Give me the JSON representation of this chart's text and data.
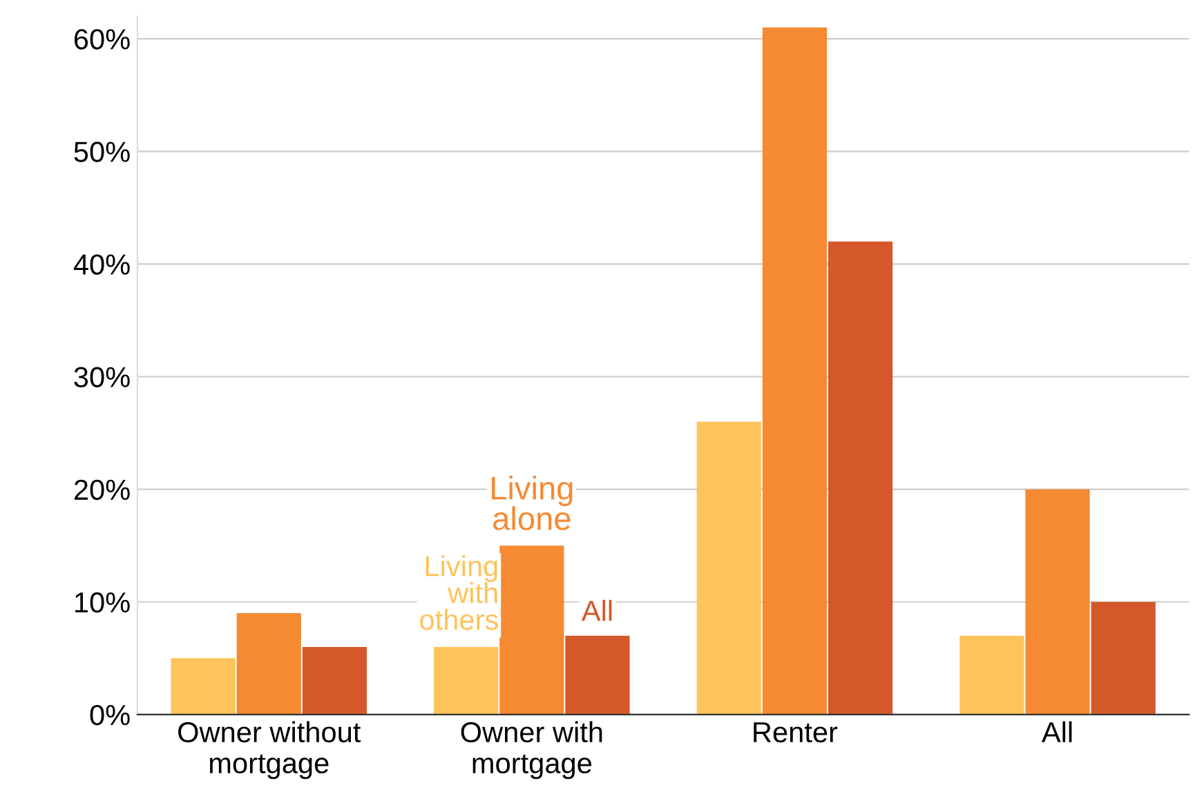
{
  "chart_data": {
    "type": "bar",
    "categories": [
      "Owner without\nmortgage",
      "Owner with\nmortgage",
      "Renter",
      "All"
    ],
    "series": [
      {
        "name": "Living with others",
        "color": "#fec35a",
        "values": [
          5,
          6,
          26,
          7
        ]
      },
      {
        "name": "Living alone",
        "color": "#f58a33",
        "values": [
          9,
          15,
          61,
          20
        ]
      },
      {
        "name": "All",
        "color": "#d4582a",
        "values": [
          6,
          7,
          42,
          10
        ]
      }
    ],
    "ylim": [
      0,
      62
    ],
    "yticks": [
      {
        "value": 0,
        "label": "0%"
      },
      {
        "value": 10,
        "label": "10%"
      },
      {
        "value": 20,
        "label": "20%"
      },
      {
        "value": 30,
        "label": "30%"
      },
      {
        "value": 40,
        "label": "40%"
      },
      {
        "value": 50,
        "label": "50%"
      },
      {
        "value": 60,
        "label": "60%"
      }
    ],
    "grid": "y",
    "legend": false
  }
}
